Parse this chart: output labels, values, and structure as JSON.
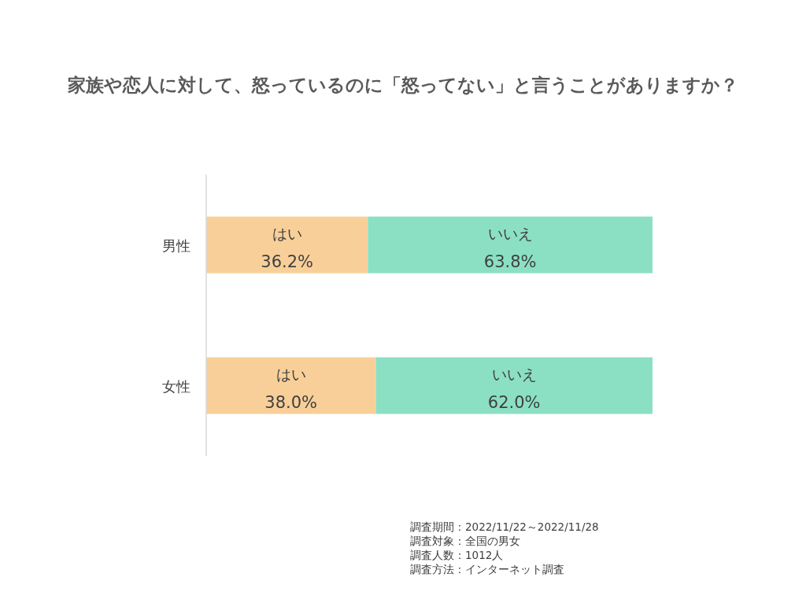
{
  "chart_data": {
    "type": "bar",
    "orientation": "horizontal",
    "stacked": true,
    "title": "家族や恋人に対して、怒っているのに「怒ってない」と言うことがありますか？",
    "categories": [
      "男性",
      "女性"
    ],
    "series": [
      {
        "name": "はい",
        "color": "#f9cf99",
        "values": [
          36.2,
          38.0
        ],
        "value_labels": [
          "36.2%",
          "38.0%"
        ]
      },
      {
        "name": "いいえ",
        "color": "#8be0c4",
        "values": [
          63.8,
          62.0
        ],
        "value_labels": [
          "63.8%",
          "62.0%"
        ]
      }
    ],
    "legend": false,
    "annotations": [
      "調査期間：2022/11/22～2022/11/28",
      "調査対象：全国の男女",
      "調査人数：1012人",
      "調査方法：インターネット調査"
    ]
  }
}
